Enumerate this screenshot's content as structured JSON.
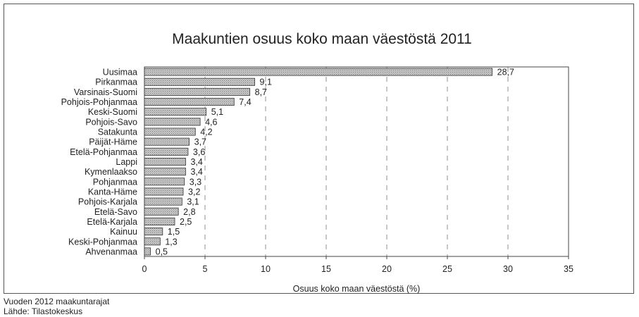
{
  "chart_data": {
    "type": "bar",
    "orientation": "horizontal",
    "title": "Maakuntien osuus koko maan väestöstä 2011",
    "xlabel": "Osuus koko maan väestöstä (%)",
    "ylabel": "",
    "xlim": [
      0,
      35
    ],
    "xticks": [
      "0",
      "5",
      "10",
      "15",
      "20",
      "25",
      "30",
      "35"
    ],
    "grid": "vertical dashed",
    "categories": [
      "Uusimaa",
      "Pirkanmaa",
      "Varsinais-Suomi",
      "Pohjois-Pohjanmaa",
      "Keski-Suomi",
      "Pohjois-Savo",
      "Satakunta",
      "Päijät-Häme",
      "Etelä-Pohjanmaa",
      "Lappi",
      "Kymenlaakso",
      "Pohjanmaa",
      "Kanta-Häme",
      "Pohjois-Karjala",
      "Etelä-Savo",
      "Etelä-Karjala",
      "Kainuu",
      "Keski-Pohjanmaa",
      "Ahvenanmaa"
    ],
    "values": [
      28.7,
      9.1,
      8.7,
      7.4,
      5.1,
      4.6,
      4.2,
      3.7,
      3.6,
      3.4,
      3.4,
      3.3,
      3.2,
      3.1,
      2.8,
      2.5,
      1.5,
      1.3,
      0.5
    ],
    "value_labels": [
      "28,7",
      "9,1",
      "8,7",
      "7,4",
      "5,1",
      "4,6",
      "4,2",
      "3,7",
      "3,6",
      "3,4",
      "3,4",
      "3,3",
      "3,2",
      "3,1",
      "2,8",
      "2,5",
      "1,5",
      "1,3",
      "0,5"
    ],
    "bar_color": "#9a9a9a",
    "footer": [
      "Vuoden 2012 maakuntarajat",
      "Lähde: Tilastokeskus"
    ]
  }
}
